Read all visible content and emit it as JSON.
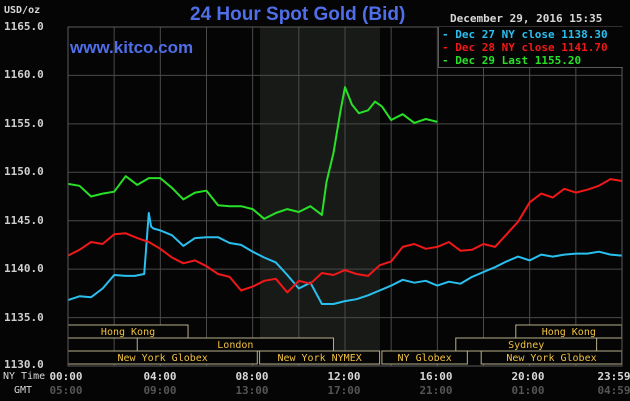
{
  "header": {
    "title": "24 Hour Spot Gold (Bid)",
    "site": "www.kitco.com",
    "unit": "USD/oz",
    "datetime": "December 29, 2016 15:35"
  },
  "legend": [
    {
      "label": "Dec 27 NY close 1138.30",
      "color": "#29c0f0"
    },
    {
      "label": "Dec 28 NY close 1141.70",
      "color": "#f01818"
    },
    {
      "label": "Dec 29 Last 1155.20",
      "color": "#28e028"
    }
  ],
  "axis": {
    "y_ticks": [
      "1165.0",
      "1160.0",
      "1155.0",
      "1150.0",
      "1145.0",
      "1140.0",
      "1135.0",
      "1130.0"
    ],
    "x_row1_label": "NY Time",
    "x_row2_label": "GMT",
    "x_ny": [
      "00:00",
      "04:00",
      "08:00",
      "12:00",
      "16:00",
      "20:00",
      "23:59"
    ],
    "x_gmt": [
      "05:00",
      "09:00",
      "13:00",
      "17:00",
      "21:00",
      "01:00",
      "04:59"
    ]
  },
  "sessions": {
    "row1": [
      {
        "label": "Hong Kong",
        "from": 0,
        "to": 5.2
      },
      {
        "label": "Hong Kong",
        "from": 19.4,
        "to": 23.99
      }
    ],
    "row2": [
      {
        "label": "London",
        "from": 3,
        "to": 11.5
      },
      {
        "label": "Sydney",
        "from": 16.8,
        "to": 22.9
      }
    ],
    "row3": [
      {
        "label": "New York Globex",
        "from": 0,
        "to": 8.2
      },
      {
        "label": "New York NYMEX",
        "from": 8.3,
        "to": 13.5
      },
      {
        "label": "NY Globex",
        "from": 13.6,
        "to": 17.3
      },
      {
        "label": "New York Globex",
        "from": 17.9,
        "to": 23.99
      }
    ]
  },
  "chart_data": {
    "type": "line",
    "title": "24 Hour Spot Gold (Bid)",
    "xlabel": "NY Time / GMT",
    "ylabel": "USD/oz",
    "ylim": [
      1130,
      1165
    ],
    "xlim_hours": [
      0,
      24
    ],
    "grid": true,
    "legend_position": "top-right",
    "shaded_region_hours": [
      8.3,
      13.5
    ],
    "series": [
      {
        "name": "Dec 27 NY close 1138.30",
        "color": "#29c0f0",
        "x": [
          0,
          0.5,
          1,
          1.5,
          2,
          2.5,
          2.9,
          3.3,
          3.5,
          3.6,
          3.7,
          4,
          4.5,
          5,
          5.5,
          6,
          6.5,
          7,
          7.5,
          8,
          8.5,
          9,
          9.5,
          10,
          10.5,
          11,
          11.5,
          12,
          12.5,
          13,
          13.5,
          14,
          14.5,
          15,
          15.5,
          16,
          16.5,
          17,
          17.5,
          18,
          18.5,
          19,
          19.5,
          20,
          20.5,
          21,
          21.5,
          22,
          22.5,
          23,
          23.5,
          24
        ],
        "values": [
          1136.8,
          1137.2,
          1137.1,
          1138.0,
          1139.4,
          1139.3,
          1139.3,
          1139.5,
          1145.8,
          1144.4,
          1144.2,
          1144.0,
          1143.5,
          1142.4,
          1143.2,
          1143.3,
          1143.3,
          1142.7,
          1142.5,
          1141.8,
          1141.2,
          1140.7,
          1139.4,
          1138.0,
          1138.6,
          1136.4,
          1136.4,
          1136.7,
          1136.9,
          1137.3,
          1137.8,
          1138.3,
          1138.9,
          1138.6,
          1138.8,
          1138.3,
          1138.7,
          1138.5,
          1139.2,
          1139.7,
          1140.2,
          1140.8,
          1141.3,
          1140.9,
          1141.5,
          1141.3,
          1141.5,
          1141.6,
          1141.6,
          1141.8,
          1141.5,
          1141.4
        ]
      },
      {
        "name": "Dec 28 NY close 1141.70",
        "color": "#f01818",
        "x": [
          0,
          0.5,
          1,
          1.5,
          2,
          2.5,
          3,
          3.5,
          4,
          4.5,
          5,
          5.5,
          6,
          6.5,
          7,
          7.5,
          8,
          8.5,
          9,
          9.5,
          10,
          10.5,
          11,
          11.5,
          12,
          12.5,
          13,
          13.5,
          14,
          14.5,
          15,
          15.5,
          16,
          16.5,
          17,
          17.5,
          18,
          18.5,
          19,
          19.5,
          20,
          20.5,
          21,
          21.5,
          22,
          22.5,
          23,
          23.5,
          24
        ],
        "values": [
          1141.4,
          1142.0,
          1142.8,
          1142.6,
          1143.6,
          1143.7,
          1143.2,
          1142.8,
          1142.1,
          1141.2,
          1140.6,
          1140.9,
          1140.3,
          1139.5,
          1139.2,
          1137.8,
          1138.2,
          1138.8,
          1139.0,
          1137.6,
          1138.8,
          1138.5,
          1139.6,
          1139.4,
          1139.9,
          1139.5,
          1139.3,
          1140.4,
          1140.8,
          1142.3,
          1142.6,
          1142.1,
          1142.3,
          1142.8,
          1141.9,
          1142.0,
          1142.6,
          1142.3,
          1143.6,
          1144.9,
          1146.9,
          1147.8,
          1147.4,
          1148.3,
          1147.9,
          1148.2,
          1148.6,
          1149.3,
          1149.1
        ]
      },
      {
        "name": "Dec 29 Last 1155.20",
        "color": "#28e028",
        "x": [
          0,
          0.5,
          1,
          1.5,
          2,
          2.5,
          3,
          3.5,
          4,
          4.5,
          5,
          5.5,
          6,
          6.5,
          7,
          7.5,
          8,
          8.5,
          9,
          9.5,
          10,
          10.5,
          11,
          11.2,
          11.5,
          11.8,
          12,
          12.3,
          12.6,
          13,
          13.3,
          13.6,
          14,
          14.5,
          15,
          15.5,
          16
        ],
        "values": [
          1148.8,
          1148.6,
          1147.5,
          1147.8,
          1148.0,
          1149.6,
          1148.7,
          1149.4,
          1149.4,
          1148.4,
          1147.2,
          1147.9,
          1148.1,
          1146.6,
          1146.5,
          1146.5,
          1146.2,
          1145.2,
          1145.8,
          1146.2,
          1145.9,
          1146.5,
          1145.6,
          1149.0,
          1152.0,
          1156.3,
          1158.8,
          1157.0,
          1156.1,
          1156.4,
          1157.3,
          1156.8,
          1155.4,
          1156.0,
          1155.1,
          1155.5,
          1155.2
        ]
      }
    ]
  }
}
